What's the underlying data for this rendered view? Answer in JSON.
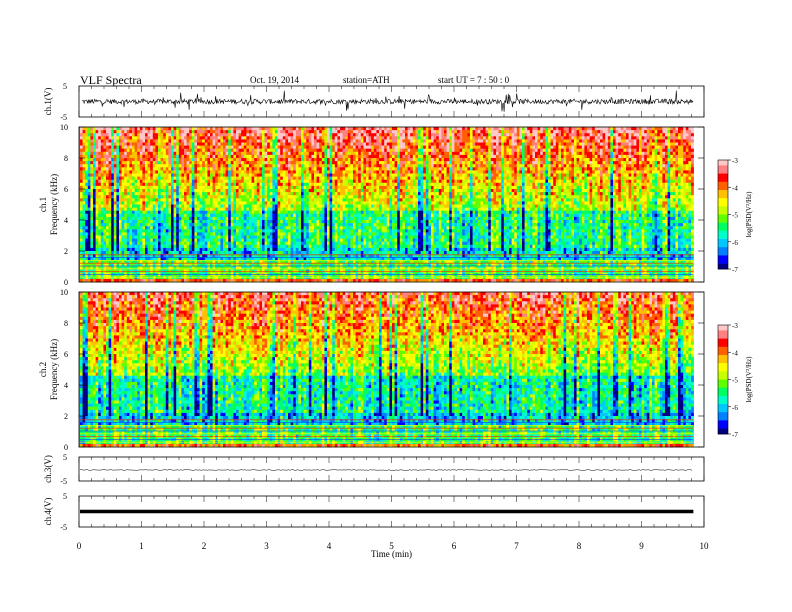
{
  "header": {
    "title": "VLF  Spectra",
    "date": "Oct. 19, 2014",
    "station": "station=ATH",
    "start": "start  UT  =   7  : 50 : 0"
  },
  "chart_data": [
    {
      "type": "line",
      "panel": "ch1-waveform",
      "ylabel": "ch.1(V)",
      "ylim": [
        -5,
        5
      ],
      "yticks": [
        "5",
        "-5"
      ],
      "trace_level": 0,
      "trace_color": "#000000"
    },
    {
      "type": "heatmap",
      "panel": "ch1-spectrogram",
      "ylabel_top": "ch.1",
      "ylabel": "Frequency  (kHz)",
      "ylim": [
        0,
        10
      ],
      "yticks": [
        "0",
        "2",
        "4",
        "6",
        "8",
        "10"
      ],
      "colorbar": {
        "label": "log(PSD(V²/Hz)",
        "range": [
          -7,
          -3
        ],
        "ticks": [
          "-3",
          "-4",
          "-5",
          "-6",
          "-7"
        ]
      },
      "x_extent_min": [
        0,
        9.83
      ]
    },
    {
      "type": "heatmap",
      "panel": "ch2-spectrogram",
      "ylabel_top": "ch.2",
      "ylabel": "Frequency  (kHz)",
      "ylim": [
        0,
        10
      ],
      "yticks": [
        "0",
        "2",
        "4",
        "6",
        "8",
        "10"
      ],
      "colorbar": {
        "label": "log(PSD(V²/Hz)",
        "range": [
          -7,
          -3
        ],
        "ticks": [
          "-3",
          "-4",
          "-5",
          "-6",
          "-7"
        ]
      },
      "x_extent_min": [
        0,
        9.83
      ]
    },
    {
      "type": "line",
      "panel": "ch3-waveform",
      "ylabel": "ch.3(V)",
      "ylim": [
        -5,
        5
      ],
      "yticks": [
        "5",
        "-5"
      ],
      "trace_level": 0,
      "trace_color": "#000000"
    },
    {
      "type": "line",
      "panel": "ch4-waveform",
      "ylabel": "ch.4(V)",
      "ylim": [
        -5,
        5
      ],
      "yticks": [
        "5",
        "-5"
      ],
      "trace_level": 0,
      "trace_color": "#000000"
    }
  ],
  "x_axis": {
    "label": "Time  (min)",
    "range": [
      0,
      10
    ],
    "ticks": [
      "0",
      "1",
      "2",
      "3",
      "4",
      "5",
      "6",
      "7",
      "8",
      "9",
      "10"
    ]
  },
  "colormap": [
    "#000080",
    "#0000ff",
    "#0080ff",
    "#00c8ff",
    "#00ffc8",
    "#00ff60",
    "#60ff00",
    "#c8ff00",
    "#ffff00",
    "#ffc000",
    "#ff6000",
    "#ff0000",
    "#ff8080",
    "#ffc8c8"
  ]
}
